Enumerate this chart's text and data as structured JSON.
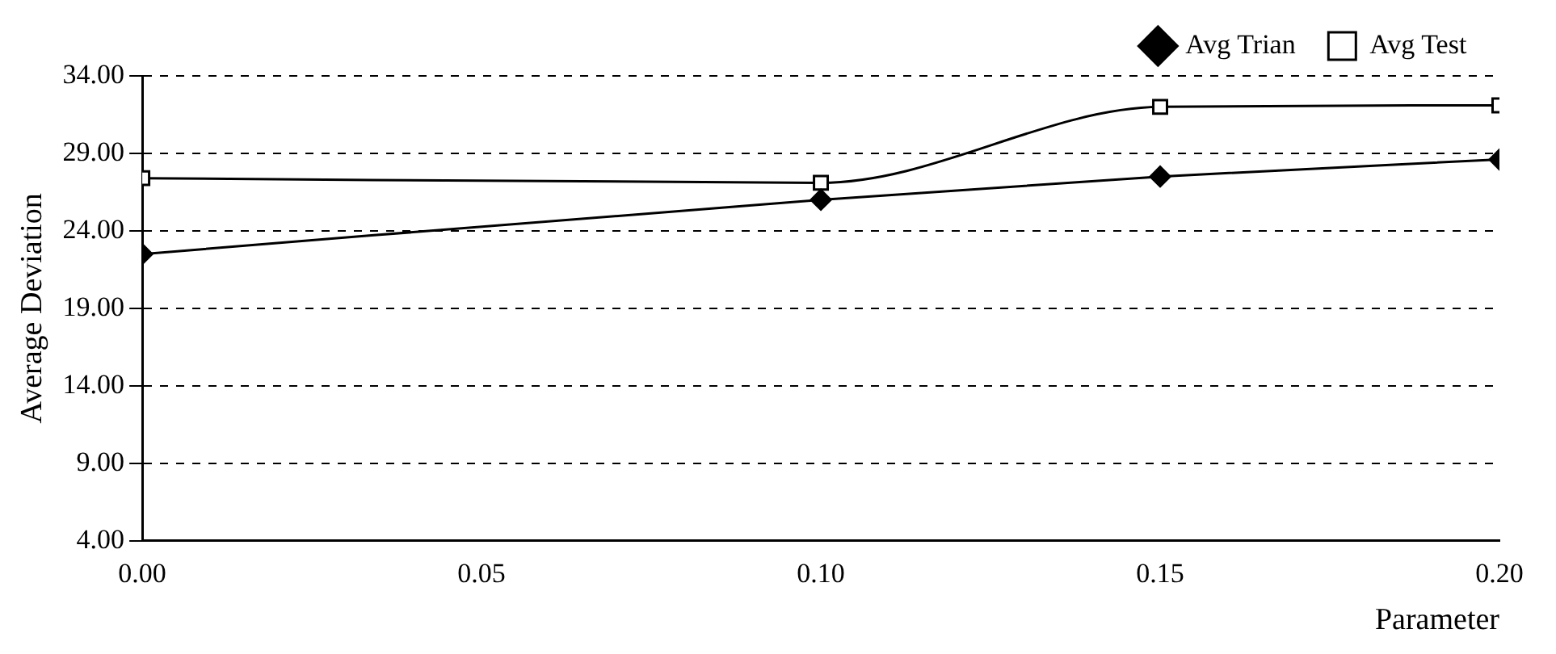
{
  "chart_data": {
    "type": "line",
    "xlabel": "Parameter",
    "ylabel": "Average Deviation",
    "x": [
      0,
      0.1,
      0.15,
      0.2
    ],
    "series": [
      {
        "name": "Avg Trian",
        "color": "#000000",
        "values": [
          22.5,
          26.0,
          27.5,
          28.6
        ],
        "marker": "diamond"
      },
      {
        "name": "Avg Test",
        "color": "#000000",
        "values": [
          27.4,
          27.1,
          32.0,
          32.1
        ],
        "marker": "square"
      }
    ],
    "xlim": [
      0,
      0.2
    ],
    "xticks": [
      {
        "value": 0,
        "label": "0.00"
      },
      {
        "value": 0.05,
        "label": "0.05"
      },
      {
        "value": 0.1,
        "label": "0.10"
      },
      {
        "value": 0.15,
        "label": "0.15"
      },
      {
        "value": 0.2,
        "label": "0.20"
      }
    ],
    "ylim": [
      4,
      34
    ],
    "yticks": [
      {
        "value": 4,
        "label": "4.00"
      },
      {
        "value": 9,
        "label": "9.00"
      },
      {
        "value": 14,
        "label": "14.00"
      },
      {
        "value": 19,
        "label": "19.00"
      },
      {
        "value": 24,
        "label": "24.00"
      },
      {
        "value": 29,
        "label": "29.00"
      },
      {
        "value": 34,
        "label": "34.00"
      }
    ],
    "grid": "y",
    "legend": "top right"
  }
}
